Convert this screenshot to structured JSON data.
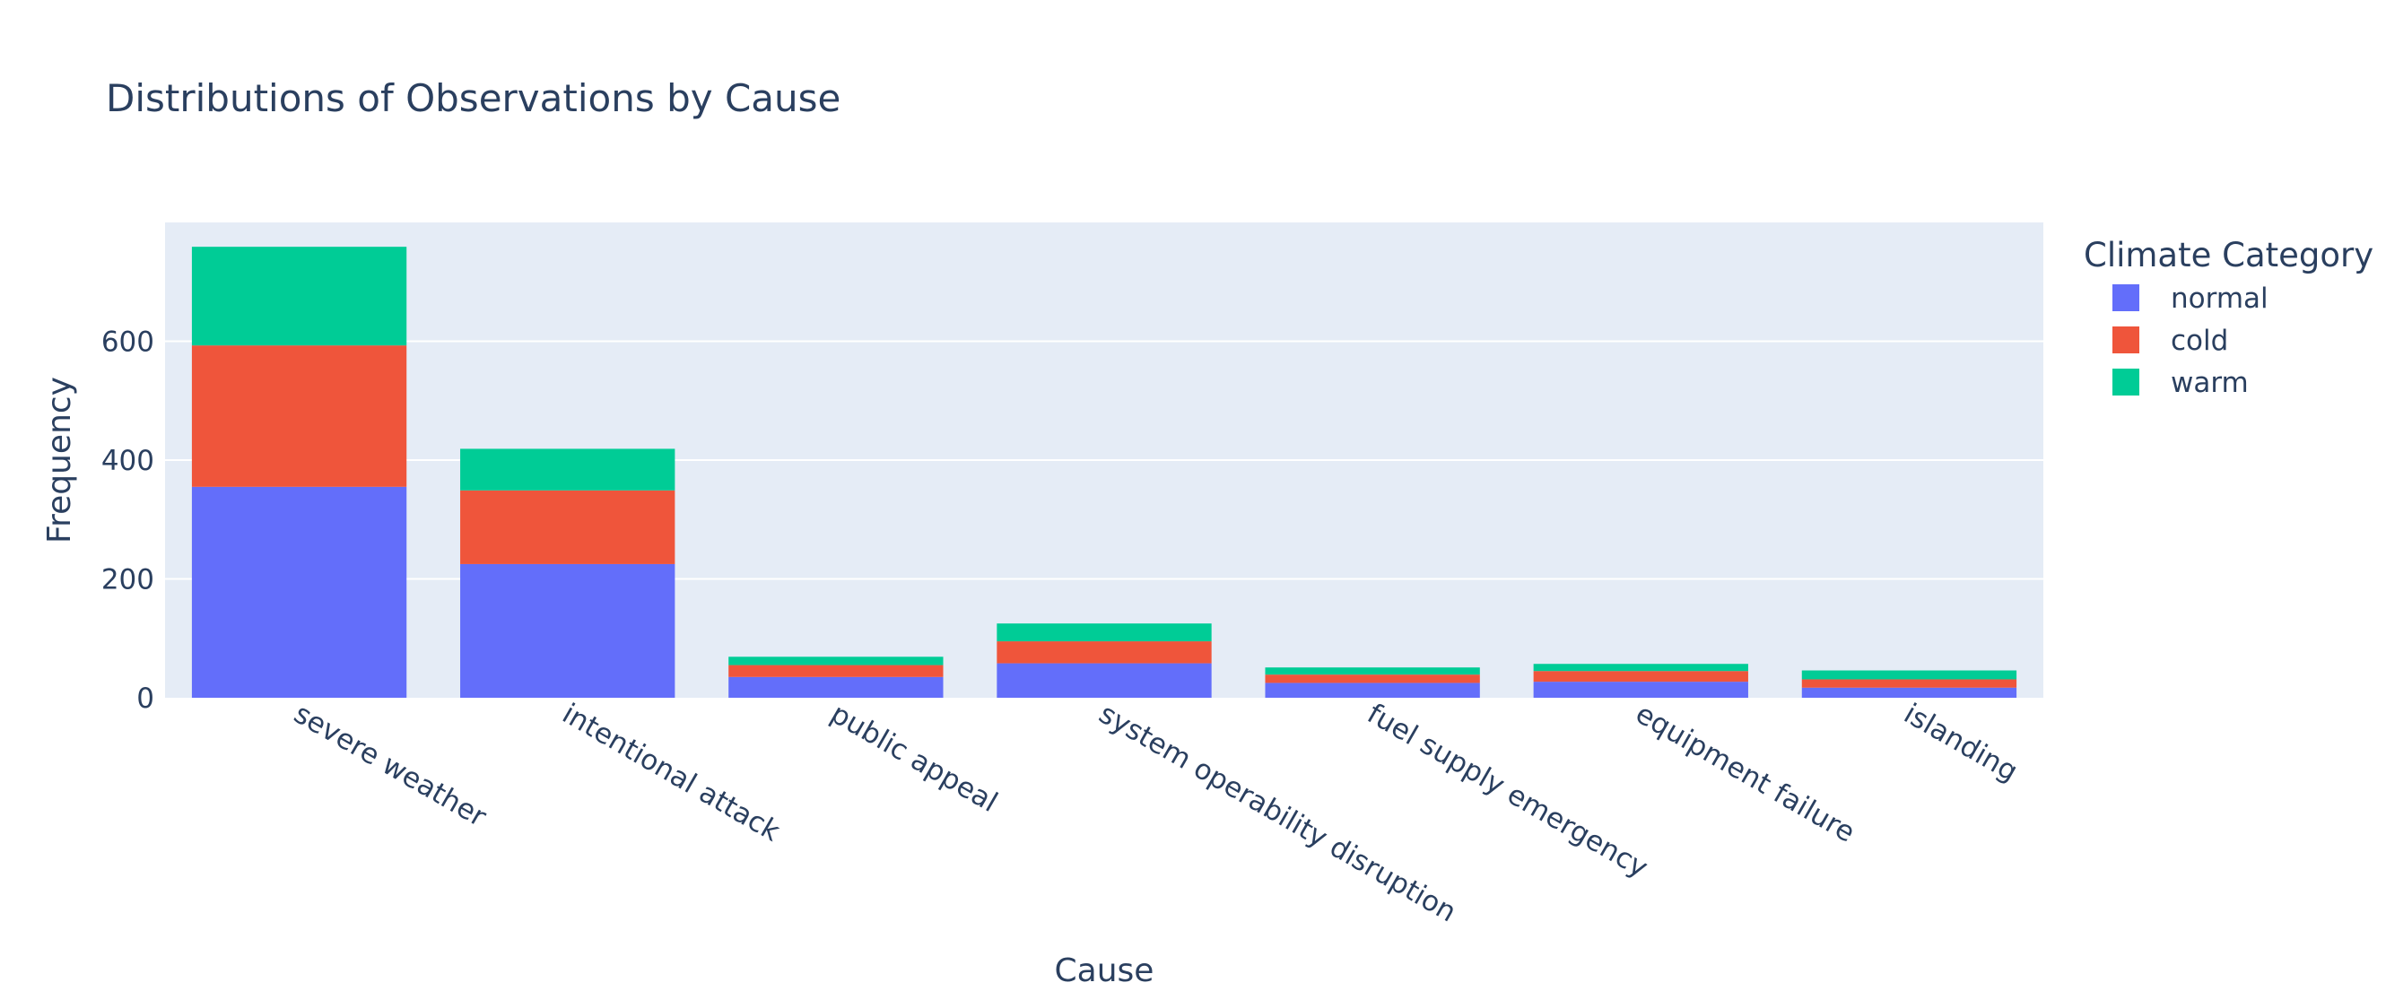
{
  "chart_data": {
    "type": "bar",
    "mode": "stacked",
    "title": "Distributions of Observations by Cause",
    "xlabel": "Cause",
    "ylabel": "Frequency",
    "categories": [
      "severe weather",
      "intentional attack",
      "public appeal",
      "system operability disruption",
      "fuel supply emergency",
      "equipment failure",
      "islanding"
    ],
    "legend_title": "Climate Category",
    "legend_position": "right",
    "series": [
      {
        "name": "normal",
        "color": "#636efa",
        "values": [
          355,
          225,
          35,
          58,
          25,
          27,
          17
        ]
      },
      {
        "name": "cold",
        "color": "#ef553b",
        "values": [
          238,
          124,
          20,
          37,
          14,
          18,
          14
        ]
      },
      {
        "name": "warm",
        "color": "#00cc96",
        "values": [
          166,
          70,
          14,
          30,
          12,
          12,
          15
        ]
      }
    ],
    "yticks": [
      "0",
      "200",
      "400",
      "600"
    ],
    "ylim": [
      0,
      800
    ],
    "grid": true,
    "plot_background": "#e5ecf6",
    "gridline_color": "#ffffff"
  }
}
